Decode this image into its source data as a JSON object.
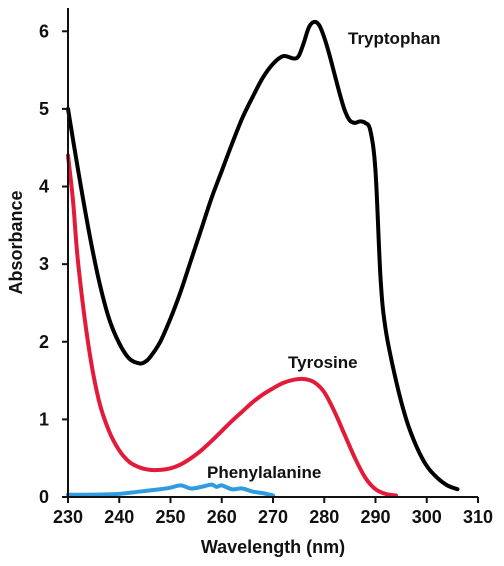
{
  "chart_data": {
    "type": "line",
    "title": "",
    "xlabel": "Wavelength (nm)",
    "ylabel": "Absorbance",
    "xlim": [
      230,
      310
    ],
    "ylim": [
      0,
      6.3
    ],
    "xticks": [
      230,
      240,
      250,
      260,
      270,
      280,
      290,
      300,
      310
    ],
    "yticks": [
      0,
      1,
      2,
      3,
      4,
      5,
      6
    ],
    "grid": false,
    "legend": "none",
    "series": [
      {
        "name": "Tryptophan",
        "color": "#000000",
        "x": [
          230,
          232,
          234,
          236,
          238,
          240,
          242,
          244,
          245,
          246,
          248,
          250,
          252,
          254,
          256,
          258,
          260,
          262,
          264,
          266,
          268,
          270,
          272,
          274,
          275,
          276,
          277,
          278,
          279,
          280,
          281,
          282,
          283,
          284,
          285,
          286,
          287,
          288,
          289,
          290,
          291,
          292,
          294,
          296,
          298,
          300,
          302,
          304,
          306
        ],
        "y": [
          5.0,
          4.2,
          3.45,
          2.8,
          2.3,
          1.98,
          1.78,
          1.72,
          1.74,
          1.8,
          2.0,
          2.3,
          2.65,
          3.05,
          3.45,
          3.85,
          4.2,
          4.55,
          4.88,
          5.15,
          5.4,
          5.58,
          5.68,
          5.65,
          5.68,
          5.85,
          6.05,
          6.12,
          6.08,
          5.92,
          5.7,
          5.45,
          5.2,
          4.98,
          4.85,
          4.82,
          4.84,
          4.82,
          4.72,
          4.2,
          2.8,
          2.15,
          1.5,
          1.0,
          0.65,
          0.4,
          0.25,
          0.15,
          0.1
        ]
      },
      {
        "name": "Tyrosine",
        "color": "#e31b3b",
        "x": [
          230,
          231,
          232,
          234,
          236,
          238,
          240,
          242,
          244,
          246,
          248,
          250,
          252,
          254,
          256,
          258,
          260,
          262,
          264,
          266,
          268,
          270,
          272,
          274,
          276,
          278,
          280,
          282,
          284,
          286,
          288,
          290,
          292,
          294
        ],
        "y": [
          4.4,
          3.8,
          3.0,
          1.95,
          1.25,
          0.85,
          0.6,
          0.45,
          0.38,
          0.35,
          0.35,
          0.37,
          0.42,
          0.5,
          0.6,
          0.72,
          0.85,
          0.98,
          1.1,
          1.22,
          1.32,
          1.4,
          1.47,
          1.51,
          1.52,
          1.48,
          1.35,
          1.1,
          0.8,
          0.5,
          0.25,
          0.1,
          0.04,
          0.02
        ]
      },
      {
        "name": "Phenylalanine",
        "color": "#2f9be0",
        "x": [
          230,
          235,
          240,
          244,
          248,
          250,
          252,
          254,
          256,
          258,
          259,
          260,
          262,
          264,
          266,
          268,
          270
        ],
        "y": [
          0.03,
          0.03,
          0.04,
          0.07,
          0.1,
          0.12,
          0.15,
          0.11,
          0.13,
          0.16,
          0.13,
          0.15,
          0.1,
          0.11,
          0.07,
          0.05,
          0.02
        ]
      }
    ]
  }
}
